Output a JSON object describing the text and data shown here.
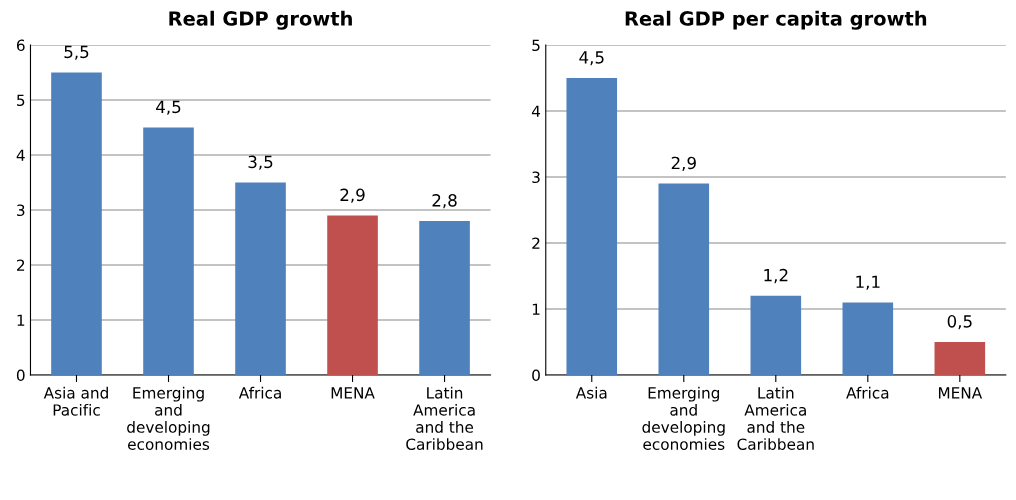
{
  "chart_data": [
    {
      "type": "bar",
      "title": "Real GDP growth",
      "categories": [
        "Asia and\nPacific",
        "Emerging\nand\ndeveloping\neconomies",
        "Africa",
        "MENA",
        "Latin\nAmerica\nand the\nCaribbean"
      ],
      "values": [
        5.5,
        4.5,
        3.5,
        2.9,
        2.8
      ],
      "colors": [
        "#4f81bd",
        "#4f81bd",
        "#4f81bd",
        "#c0504d",
        "#4f81bd"
      ],
      "value_labels": [
        "5,5",
        "4,5",
        "3,5",
        "2,9",
        "2,8"
      ],
      "ylim": [
        0,
        6
      ],
      "yticks": [
        0,
        1,
        2,
        3,
        4,
        5,
        6
      ],
      "grid": "y",
      "legend": false
    },
    {
      "type": "bar",
      "title": "Real GDP per capita growth",
      "categories": [
        "Asia",
        "Emerging\nand\ndeveloping\neconomies",
        "Latin\nAmerica\nand the\nCaribbean",
        "Africa",
        "MENA"
      ],
      "values": [
        4.5,
        2.9,
        1.2,
        1.1,
        0.5
      ],
      "colors": [
        "#4f81bd",
        "#4f81bd",
        "#4f81bd",
        "#4f81bd",
        "#c0504d"
      ],
      "value_labels": [
        "4,5",
        "2,9",
        "1,2",
        "1,1",
        "0,5"
      ],
      "ylim": [
        0,
        5
      ],
      "yticks": [
        0,
        1,
        2,
        3,
        4,
        5
      ],
      "grid": "y",
      "legend": false
    }
  ]
}
